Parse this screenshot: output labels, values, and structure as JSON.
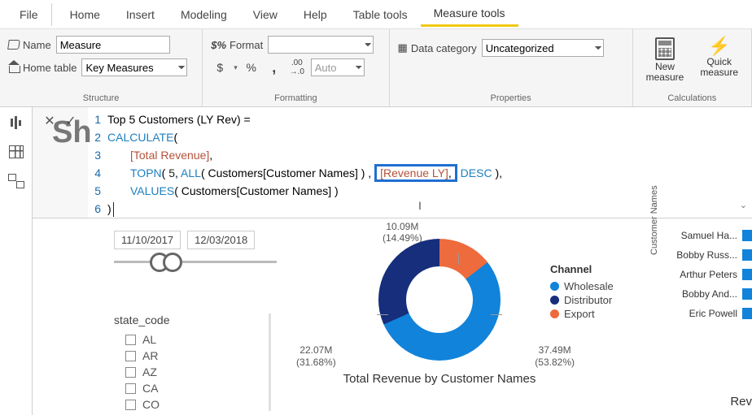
{
  "menubar": {
    "file": "File",
    "tabs": [
      "Home",
      "Insert",
      "Modeling",
      "View",
      "Help"
    ],
    "context_tabs": [
      "Table tools",
      "Measure tools"
    ],
    "active_tab": "Measure tools"
  },
  "ribbon": {
    "structure": {
      "group_label": "Structure",
      "name_label": "Name",
      "name_value": "Measure",
      "home_table_label": "Home table",
      "home_table_value": "Key Measures"
    },
    "formatting": {
      "group_label": "Formatting",
      "format_label": "Format",
      "format_value": "",
      "currency_symbol": "$",
      "percent_symbol": "%",
      "comma_symbol": ",",
      "decimals_symbol": ".00",
      "auto_label": "Auto"
    },
    "properties": {
      "group_label": "Properties",
      "data_category_label": "Data category",
      "data_category_value": "Uncategorized"
    },
    "calculations": {
      "group_label": "Calculations",
      "new_measure": "New measure",
      "quick_measure": "Quick measure"
    }
  },
  "formula": {
    "watermark": "Sh",
    "lines": [
      {
        "n": 1,
        "text_plain": "Top 5 Customers (LY Rev) ="
      },
      {
        "n": 2
      },
      {
        "n": 3
      },
      {
        "n": 4
      },
      {
        "n": 5
      },
      {
        "n": 6
      }
    ],
    "l1_text": "Top 5 Customers (LY Rev) =",
    "l2_fn": "CALCULATE",
    "l2_rest": "(",
    "l3_meas": "[Total Revenue]",
    "l3_rest": ",",
    "l4_fn1": "TOPN",
    "l4_open": "( ",
    "l4_num": "5",
    "l4_c1": ", ",
    "l4_fn2": "ALL",
    "l4_allarg": "( Customers[Customer Names] )",
    "l4_c2": " , ",
    "l4_rev": "[Revenue LY]",
    "l4_c3": ", ",
    "l4_desc": "DESC",
    "l4_close": " ),",
    "l5_fn": "VALUES",
    "l5_arg": "( Customers[Customer Names] )",
    "l6_text": ")"
  },
  "slicer_dates": {
    "start": "11/10/2017",
    "end": "12/03/2018"
  },
  "state_slicer": {
    "header": "state_code",
    "items": [
      "AL",
      "AR",
      "AZ",
      "CA",
      "CO"
    ]
  },
  "donut": {
    "title": "Total Revenue by Customer Names",
    "type": "donut",
    "legend_header": "Channel",
    "series": [
      {
        "name": "Wholesale",
        "value": 37.49,
        "pct": 53.82,
        "color": "#1183da"
      },
      {
        "name": "Distributor",
        "value": 22.07,
        "pct": 31.68,
        "color": "#162e7b"
      },
      {
        "name": "Export",
        "value": 10.09,
        "pct": 14.49,
        "color": "#ed6b3c"
      }
    ],
    "label_top": "10.09M\n(14.49%)",
    "label_br": "37.49M\n(53.82%)",
    "label_bl": "22.07M\n(31.68%)",
    "background_color": "#ffffff",
    "label_fontsize": 12
  },
  "customers_bar": {
    "axis_title": "Customer Names",
    "names": [
      "Samuel Ha...",
      "Bobby Russ...",
      "Arthur Peters",
      "Bobby And...",
      "Eric Powell"
    ],
    "bar_color": "#1183da",
    "rev_label": "Rev"
  }
}
